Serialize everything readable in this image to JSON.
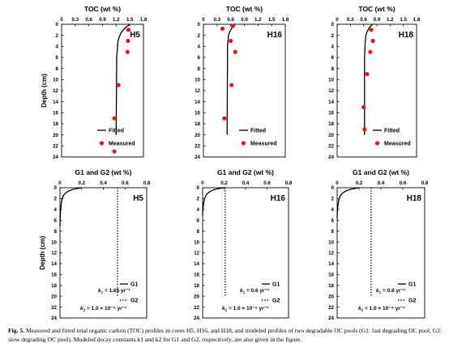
{
  "caption": {
    "label": "Fig. 5.",
    "text": "Measured and fitted total organic carbon (TOC) profiles in cores H5, H16, and H18, and modeled profiles of two degradable OC pools (G1: fast degrading OC pool, G2: slow degrading OC pool). Modeled decay constants k1 and k2 for G1 and G2, respectively, are also given in the figure."
  },
  "colors": {
    "measured": "#e8141c",
    "line": "#000000"
  },
  "chart_data": [
    {
      "type": "scatter",
      "panel": "H5",
      "title": "TOC (wt %)",
      "xlabel": "",
      "ylabel": "Depth (cm)",
      "xlim": [
        0,
        1.8
      ],
      "ylim": [
        0,
        24
      ],
      "xticks": [
        "0",
        "0.3",
        "0.6",
        "0.9",
        "1.2",
        "1.5",
        "1.8"
      ],
      "yticks": [
        "0",
        "2",
        "4",
        "6",
        "8",
        "10",
        "12",
        "14",
        "16",
        "18",
        "20",
        "22",
        "24"
      ],
      "legend": [
        "Fitted",
        "Measured"
      ],
      "series": [
        {
          "name": "Fitted",
          "kind": "line",
          "x": [
            1.5,
            1.42,
            1.36,
            1.31,
            1.28,
            1.26,
            1.24,
            1.23,
            1.22,
            1.21,
            1.21,
            1.2
          ],
          "y": [
            0,
            0.5,
            1,
            1.5,
            2,
            2.5,
            3,
            4,
            5,
            6,
            8,
            20
          ]
        },
        {
          "name": "Measured",
          "kind": "points",
          "x": [
            1.47,
            1.46,
            1.45,
            1.25,
            1.16,
            1.16
          ],
          "y": [
            1,
            3,
            5,
            11,
            17,
            23
          ]
        }
      ]
    },
    {
      "type": "scatter",
      "panel": "H16",
      "title": "TOC (wt %)",
      "xlabel": "",
      "ylabel": "",
      "xlim": [
        0,
        1.8
      ],
      "ylim": [
        0,
        24
      ],
      "xticks": [
        "0",
        "0.3",
        "0.6",
        "0.9",
        "1.2",
        "1.5",
        "1.8"
      ],
      "yticks": [
        "0",
        "2",
        "4",
        "6",
        "8",
        "10",
        "12",
        "14",
        "16",
        "18",
        "20",
        "22",
        "24"
      ],
      "legend": [
        "Fitted",
        "Measured"
      ],
      "series": [
        {
          "name": "Fitted",
          "kind": "line",
          "x": [
            0.7,
            0.64,
            0.6,
            0.57,
            0.55,
            0.54,
            0.53,
            0.53,
            0.52
          ],
          "y": [
            0,
            0.5,
            1,
            1.5,
            2,
            3,
            4,
            6,
            20
          ]
        },
        {
          "name": "Measured",
          "kind": "points",
          "x": [
            0.42,
            0.65,
            0.6,
            0.7,
            0.62,
            0.46
          ],
          "y": [
            0.8,
            0.3,
            3,
            5,
            11,
            17
          ]
        }
      ]
    },
    {
      "type": "scatter",
      "panel": "H18",
      "title": "TOC (wt %)",
      "xlabel": "",
      "ylabel": "",
      "xlim": [
        0,
        1.8
      ],
      "ylim": [
        0,
        24
      ],
      "xticks": [
        "0",
        "0.3",
        "0.6",
        "0.9",
        "1.2",
        "1.5",
        "1.8"
      ],
      "yticks": [
        "0",
        "2",
        "4",
        "6",
        "8",
        "10",
        "12",
        "14",
        "16",
        "18",
        "20",
        "22",
        "24"
      ],
      "legend": [
        "Fitted",
        "Measured"
      ],
      "series": [
        {
          "name": "Fitted",
          "kind": "line",
          "x": [
            0.8,
            0.74,
            0.7,
            0.67,
            0.65,
            0.64,
            0.63,
            0.62,
            0.62
          ],
          "y": [
            0,
            0.5,
            1,
            1.5,
            2,
            3,
            4,
            6,
            20
          ]
        },
        {
          "name": "Measured",
          "kind": "points",
          "x": [
            0.77,
            0.81,
            0.75,
            0.68,
            0.6,
            0.62
          ],
          "y": [
            1,
            3,
            5,
            9,
            15,
            19
          ]
        }
      ]
    },
    {
      "type": "line",
      "panel": "H5",
      "title": "G1 and G2 (wt %)",
      "xlabel": "",
      "ylabel": "Depth (cm)",
      "xlim": [
        0,
        0.8
      ],
      "ylim": [
        0,
        24
      ],
      "xticks": [
        "0",
        "0.2",
        "0.4",
        "0.6",
        "0.8"
      ],
      "yticks": [
        "0",
        "2",
        "4",
        "6",
        "8",
        "10",
        "12",
        "14",
        "16",
        "18",
        "20",
        "22",
        "24"
      ],
      "legend": [
        "G1",
        "G2"
      ],
      "k1": "k1 = 1.65 yr⁻¹",
      "k2": "k2 = 1.0 × 10⁻⁵ yr⁻¹",
      "series": [
        {
          "name": "G1",
          "style": "solid",
          "x": [
            0.2,
            0.12,
            0.08,
            0.05,
            0.03,
            0.015,
            0.006,
            0.002,
            0
          ],
          "y": [
            0,
            0.3,
            0.6,
            1,
            1.5,
            2.5,
            4,
            5.5,
            7
          ]
        },
        {
          "name": "G2",
          "style": "dotted",
          "x": [
            0.53,
            0.53
          ],
          "y": [
            0,
            20
          ]
        }
      ]
    },
    {
      "type": "line",
      "panel": "H16",
      "title": "G1 and G2 (wt %)",
      "xlabel": "",
      "ylabel": "",
      "xlim": [
        0,
        0.8
      ],
      "ylim": [
        0,
        24
      ],
      "xticks": [
        "0",
        "0.2",
        "0.4",
        "0.6",
        "0.8"
      ],
      "yticks": [
        "0",
        "2",
        "4",
        "6",
        "8",
        "10",
        "12",
        "14",
        "16",
        "18",
        "20",
        "22",
        "24"
      ],
      "legend": [
        "G1",
        "G2"
      ],
      "k1": "k1 = 0.6 yr⁻¹",
      "k2": "k2 = 1.0 × 10⁻⁵ yr⁻¹",
      "series": [
        {
          "name": "G1",
          "style": "solid",
          "x": [
            0.2,
            0.14,
            0.1,
            0.06,
            0.035,
            0.018,
            0.008,
            0.002,
            0
          ],
          "y": [
            0,
            0.2,
            0.4,
            0.8,
            1.3,
            2,
            3,
            4.2,
            5
          ]
        },
        {
          "name": "G2",
          "style": "dotted",
          "x": [
            0.21,
            0.21
          ],
          "y": [
            0,
            20
          ]
        }
      ]
    },
    {
      "type": "line",
      "panel": "H18",
      "title": "G1 and G2 (wt %)",
      "xlabel": "",
      "ylabel": "",
      "xlim": [
        0,
        0.8
      ],
      "ylim": [
        0,
        24
      ],
      "xticks": [
        "0",
        "0.2",
        "0.4",
        "0.6",
        "0.8"
      ],
      "yticks": [
        "0",
        "2",
        "4",
        "6",
        "8",
        "10",
        "12",
        "14",
        "16",
        "18",
        "20",
        "22",
        "24"
      ],
      "legend": [
        "G1",
        "G2"
      ],
      "k1": "k1 = 0.8 yr⁻¹",
      "k2": "k2 = 1.0 × 10⁻⁴ yr⁻¹",
      "series": [
        {
          "name": "G1",
          "style": "solid",
          "x": [
            0.2,
            0.13,
            0.09,
            0.055,
            0.03,
            0.015,
            0.006,
            0.002,
            0
          ],
          "y": [
            0,
            0.25,
            0.5,
            0.9,
            1.4,
            2.2,
            3.4,
            4.5,
            5.5
          ]
        },
        {
          "name": "G2",
          "style": "dotted",
          "x": [
            0.31,
            0.31
          ],
          "y": [
            0,
            20
          ]
        }
      ]
    }
  ]
}
